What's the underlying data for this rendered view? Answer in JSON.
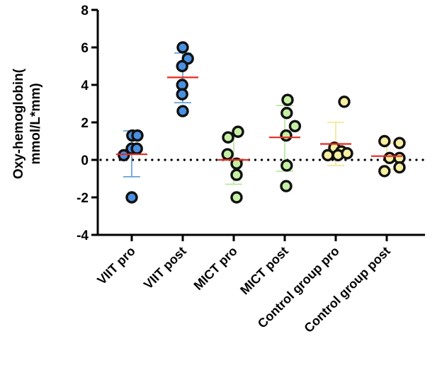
{
  "chart_data": {
    "type": "scatter",
    "title": "",
    "xlabel": "",
    "ylabel": "Oxy-hemoglobin(\nmmol/L*mm)",
    "ylabel_lines": [
      "Oxy-hemoglobin(",
      "mmol/L*mm)"
    ],
    "ylim": [
      -4,
      8
    ],
    "yticks": [
      -4,
      -2,
      0,
      2,
      4,
      6,
      8
    ],
    "reference_line": {
      "y": 0,
      "style": "dotted"
    },
    "categories": [
      "VIIT  pro",
      "VIIT post",
      "MICT  pro",
      "MICT  post",
      "Control group pro",
      "Control group post"
    ],
    "groups": [
      {
        "category": "VIIT  pro",
        "fill": "#4a90e2",
        "errcolor": "#5b9bd5",
        "mean": 0.3,
        "sd_low": -0.9,
        "sd_high": 1.55,
        "points": [
          {
            "jit": -0.28,
            "y": 0.25
          },
          {
            "jit": 0.0,
            "y": 0.6
          },
          {
            "jit": 0.18,
            "y": 0.6
          },
          {
            "jit": 0.02,
            "y": 1.3
          },
          {
            "jit": 0.2,
            "y": 1.3
          },
          {
            "jit": 0.0,
            "y": -2.0
          }
        ]
      },
      {
        "category": "VIIT post",
        "fill": "#4a90e2",
        "errcolor": "#5b9bd5",
        "mean": 4.4,
        "sd_low": 3.05,
        "sd_high": 5.7,
        "points": [
          {
            "jit": 0.0,
            "y": 6.0
          },
          {
            "jit": 0.18,
            "y": 5.4
          },
          {
            "jit": -0.02,
            "y": 5.0
          },
          {
            "jit": -0.02,
            "y": 4.0
          },
          {
            "jit": -0.02,
            "y": 3.5
          },
          {
            "jit": 0.0,
            "y": 2.6
          }
        ]
      },
      {
        "category": "MICT  pro",
        "fill": "#c5f0a4",
        "errcolor": "#b5e89a",
        "mean": 0.0,
        "sd_low": -1.3,
        "sd_high": 1.3,
        "points": [
          {
            "jit": -0.2,
            "y": 1.2
          },
          {
            "jit": 0.15,
            "y": 1.5
          },
          {
            "jit": -0.22,
            "y": 0.3
          },
          {
            "jit": 0.1,
            "y": -0.2
          },
          {
            "jit": 0.1,
            "y": -0.8
          },
          {
            "jit": 0.1,
            "y": -2.0
          }
        ]
      },
      {
        "category": "MICT  post",
        "fill": "#c5f0a4",
        "errcolor": "#b5e89a",
        "mean": 1.2,
        "sd_low": -0.6,
        "sd_high": 2.9,
        "points": [
          {
            "jit": 0.1,
            "y": 3.2
          },
          {
            "jit": 0.07,
            "y": 2.5
          },
          {
            "jit": 0.36,
            "y": 1.8
          },
          {
            "jit": 0.05,
            "y": 1.3
          },
          {
            "jit": 0.07,
            "y": -0.3
          },
          {
            "jit": 0.05,
            "y": -1.4
          }
        ]
      },
      {
        "category": "Control group pro",
        "fill": "#f7f0a0",
        "errcolor": "#f0e68c",
        "mean": 0.85,
        "sd_low": -0.3,
        "sd_high": 2.0,
        "points": [
          {
            "jit": 0.3,
            "y": 3.1
          },
          {
            "jit": -0.05,
            "y": 0.65
          },
          {
            "jit": 0.2,
            "y": 0.45
          },
          {
            "jit": -0.28,
            "y": 0.25
          },
          {
            "jit": 0.08,
            "y": 0.25
          },
          {
            "jit": 0.4,
            "y": 0.35
          }
        ]
      },
      {
        "category": "Control group post",
        "fill": "#f7f0a0",
        "errcolor": "#f0e68c",
        "mean": 0.2,
        "sd_low": -0.5,
        "sd_high": 0.9,
        "points": [
          {
            "jit": -0.08,
            "y": 1.0
          },
          {
            "jit": 0.45,
            "y": 0.9
          },
          {
            "jit": 0.1,
            "y": 0.1
          },
          {
            "jit": 0.45,
            "y": 0.1
          },
          {
            "jit": -0.08,
            "y": -0.6
          },
          {
            "jit": 0.45,
            "y": -0.4
          }
        ]
      }
    ],
    "mean_color": "#e8291f",
    "grid": false,
    "legend": "none"
  }
}
